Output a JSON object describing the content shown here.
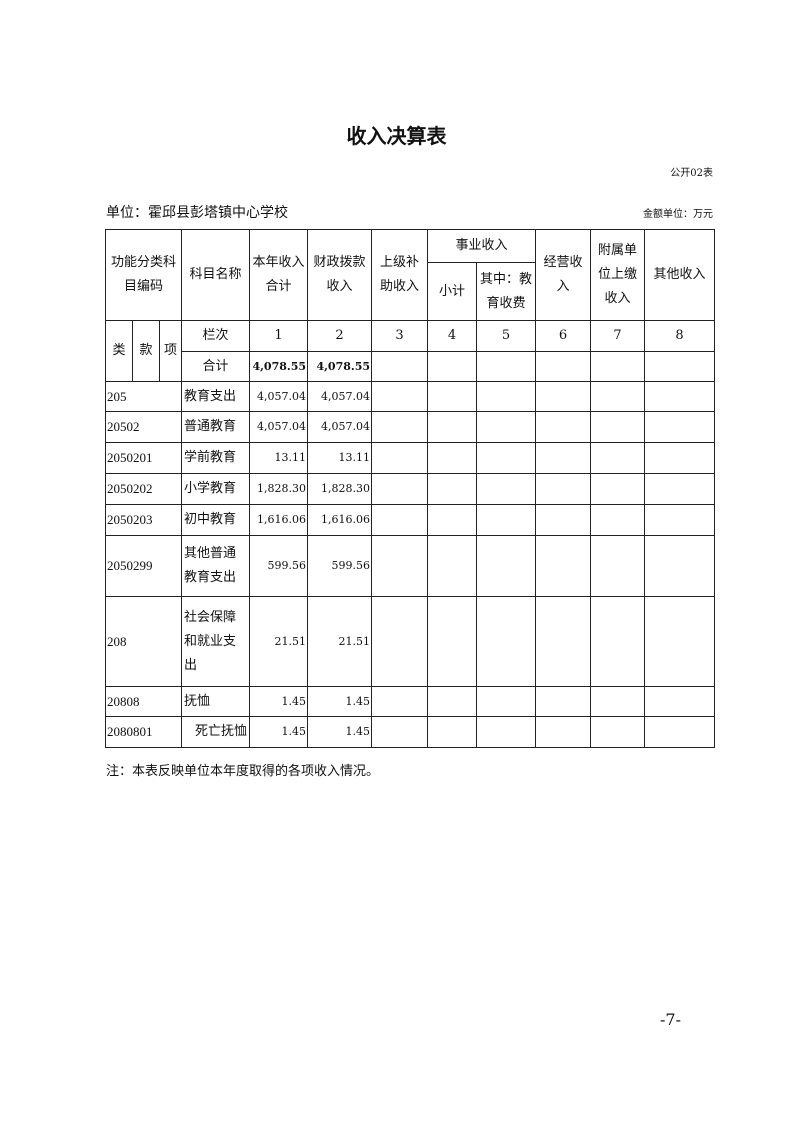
{
  "title": "收入决算表",
  "form_no": "公开02表",
  "unit_label": "单位：霍邱县彭塔镇中心学校",
  "money_unit": "金额单位：万元",
  "headers": {
    "code": "功能分类科目编码",
    "name": "科目名称",
    "total": "本年收入合计",
    "fiscal": "财政拨款收入",
    "superior": "上级补助收入",
    "business": "事业收入",
    "subtotal": "小计",
    "edu_fee": "其中：教育收费",
    "operating": "经营收入",
    "affiliated": "附属单位上缴收入",
    "other": "其他收入",
    "lei": "类",
    "kuan": "款",
    "xiang": "项",
    "col_index": "栏次",
    "cols": [
      "1",
      "2",
      "3",
      "4",
      "5",
      "6",
      "7",
      "8"
    ]
  },
  "total_row": {
    "label": "合计",
    "total": "4,078.55",
    "fiscal": "4,078.55"
  },
  "rows": [
    {
      "code": "205",
      "name": "教育支出",
      "total": "4,057.04",
      "fiscal": "4,057.04"
    },
    {
      "code": "20502",
      "name": "普通教育",
      "total": "4,057.04",
      "fiscal": "4,057.04"
    },
    {
      "code": "2050201",
      "name": "学前教育",
      "total": "13.11",
      "fiscal": "13.11"
    },
    {
      "code": "2050202",
      "name": "小学教育",
      "total": "1,828.30",
      "fiscal": "1,828.30"
    },
    {
      "code": "2050203",
      "name": "初中教育",
      "total": "1,616.06",
      "fiscal": "1,616.06"
    },
    {
      "code": "2050299",
      "name": "其他普通教育支出",
      "total": "599.56",
      "fiscal": "599.56"
    },
    {
      "code": "208",
      "name": "社会保障和就业支出",
      "total": "21.51",
      "fiscal": "21.51"
    },
    {
      "code": "20808",
      "name": "抚恤",
      "total": "1.45",
      "fiscal": "1.45"
    },
    {
      "code": "2080801",
      "name": "死亡抚恤",
      "total": "1.45",
      "fiscal": "1.45"
    }
  ],
  "note": "注：本表反映单位本年度取得的各项收入情况。",
  "page_number": "-7-"
}
